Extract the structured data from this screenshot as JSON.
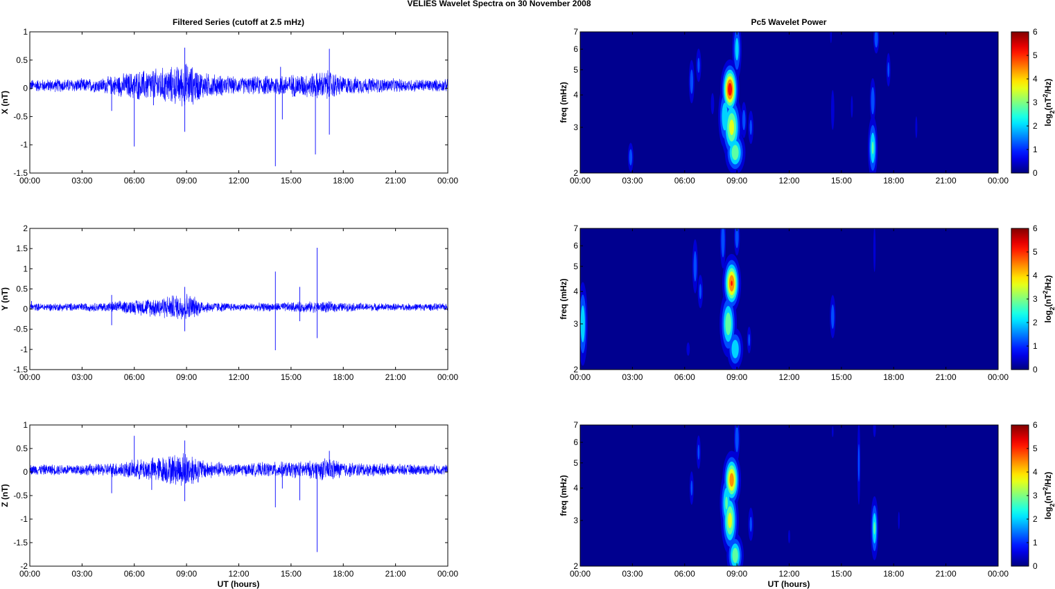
{
  "suptitle": "VELIES Wavelet Spectra on 30 November  2008",
  "left_title": "Filtered Series (cutoff at 2.5 mHz)",
  "right_title": "Pc5 Wavelet Power",
  "time_ticks": [
    "00:00",
    "03:00",
    "06:00",
    "09:00",
    "12:00",
    "15:00",
    "18:00",
    "21:00",
    "00:00"
  ],
  "xlabel": "UT (hours)",
  "freq_label": "freq (mHz)",
  "colorbar_label": {
    "base": "log",
    "sub": "2",
    "pre": "(nT",
    "sup": "2",
    "post": "/Hz)"
  },
  "colors": {
    "trace": "#0000ff",
    "background_power": "#00008f"
  },
  "chart_data": [
    {
      "type": "line",
      "panel": "series-x",
      "ylabel": "X (nT)",
      "xlim": [
        0,
        24
      ],
      "ylim": [
        -1.5,
        1
      ],
      "yticks": [
        "1",
        "0.5",
        "0",
        "-0.5",
        "-1",
        "-1.5"
      ],
      "ytick_values": [
        1,
        0.5,
        0,
        -0.5,
        -1,
        -1.5
      ],
      "envelope": [
        [
          0,
          0.12
        ],
        [
          4,
          0.14
        ],
        [
          6,
          0.28
        ],
        [
          8.5,
          0.38
        ],
        [
          9,
          0.45
        ],
        [
          10,
          0.25
        ],
        [
          12,
          0.16
        ],
        [
          14,
          0.2
        ],
        [
          16,
          0.24
        ],
        [
          17.2,
          0.3
        ],
        [
          18,
          0.18
        ],
        [
          21,
          0.13
        ],
        [
          24,
          0.12
        ]
      ],
      "spikes": [
        [
          4.7,
          -0.4
        ],
        [
          6.0,
          -1.03
        ],
        [
          7.1,
          -0.3
        ],
        [
          8.9,
          0.72
        ],
        [
          8.9,
          -0.77
        ],
        [
          14.1,
          -1.38
        ],
        [
          14.4,
          0.38
        ],
        [
          14.5,
          -0.55
        ],
        [
          16.4,
          -1.17
        ],
        [
          17.2,
          0.7
        ],
        [
          17.2,
          -0.82
        ]
      ]
    },
    {
      "type": "line",
      "panel": "series-y",
      "ylabel": "Y (nT)",
      "xlim": [
        0,
        24
      ],
      "ylim": [
        -1.5,
        2
      ],
      "yticks": [
        "2",
        "1.5",
        "1",
        "0.5",
        "0",
        "-0.5",
        "-1",
        "-1.5"
      ],
      "ytick_values": [
        2,
        1.5,
        1,
        0.5,
        0,
        -0.5,
        -1,
        -1.5
      ],
      "envelope": [
        [
          0,
          0.1
        ],
        [
          4,
          0.12
        ],
        [
          6,
          0.2
        ],
        [
          8.5,
          0.35
        ],
        [
          9,
          0.4
        ],
        [
          10,
          0.16
        ],
        [
          12,
          0.1
        ],
        [
          14,
          0.12
        ],
        [
          16,
          0.15
        ],
        [
          17,
          0.16
        ],
        [
          18,
          0.12
        ],
        [
          21,
          0.1
        ],
        [
          24,
          0.1
        ]
      ],
      "spikes": [
        [
          0.1,
          0.2
        ],
        [
          4.7,
          0.35
        ],
        [
          4.7,
          -0.4
        ],
        [
          8.9,
          0.55
        ],
        [
          8.9,
          -0.55
        ],
        [
          14.1,
          0.93
        ],
        [
          14.1,
          -1.02
        ],
        [
          15.5,
          0.55
        ],
        [
          15.5,
          -0.3
        ],
        [
          16.5,
          1.52
        ],
        [
          16.5,
          -0.72
        ]
      ]
    },
    {
      "type": "line",
      "panel": "series-z",
      "ylabel": "Z (nT)",
      "xlim": [
        0,
        24
      ],
      "ylim": [
        -2,
        1
      ],
      "yticks": [
        "1",
        "0.5",
        "0",
        "-0.5",
        "-1",
        "-1.5",
        "-2"
      ],
      "ytick_values": [
        1,
        0.5,
        0,
        -0.5,
        -1,
        -1.5,
        -2
      ],
      "envelope": [
        [
          0,
          0.12
        ],
        [
          4,
          0.14
        ],
        [
          6,
          0.22
        ],
        [
          8.5,
          0.38
        ],
        [
          9,
          0.45
        ],
        [
          10,
          0.22
        ],
        [
          12,
          0.14
        ],
        [
          14,
          0.18
        ],
        [
          16,
          0.2
        ],
        [
          17.2,
          0.28
        ],
        [
          18,
          0.18
        ],
        [
          21,
          0.13
        ],
        [
          24,
          0.12
        ]
      ],
      "spikes": [
        [
          4.7,
          -0.45
        ],
        [
          6.0,
          0.77
        ],
        [
          7.0,
          -0.38
        ],
        [
          8.9,
          0.67
        ],
        [
          8.9,
          -0.62
        ],
        [
          14.1,
          -0.75
        ],
        [
          14.5,
          -0.35
        ],
        [
          15.5,
          -0.6
        ],
        [
          16.5,
          -1.7
        ],
        [
          17.2,
          0.45
        ]
      ]
    },
    {
      "type": "heatmap",
      "panel": "power-x",
      "ylabel": "freq (mHz)",
      "xlim": [
        0,
        24
      ],
      "ylim": [
        2,
        7
      ],
      "yscale": "log",
      "yticks": [
        "2",
        "3",
        "4",
        "5",
        "6",
        "7"
      ],
      "ytick_values": [
        2,
        3,
        4,
        5,
        6,
        7
      ],
      "clim": [
        0,
        6
      ],
      "colorbar_ticks": [
        "0",
        "1",
        "2",
        "3",
        "4",
        "5",
        "6"
      ],
      "blobs": [
        [
          8.6,
          4.2,
          0.25,
          0.12,
          5.8
        ],
        [
          8.7,
          3.0,
          0.3,
          0.15,
          4.0
        ],
        [
          8.9,
          2.4,
          0.3,
          0.1,
          3.5
        ],
        [
          8.3,
          3.3,
          0.2,
          0.15,
          2.8
        ],
        [
          9.0,
          6.0,
          0.15,
          0.15,
          2.5
        ],
        [
          6.4,
          4.5,
          0.1,
          0.12,
          1.8
        ],
        [
          6.8,
          5.2,
          0.1,
          0.1,
          1.5
        ],
        [
          2.9,
          2.3,
          0.1,
          0.08,
          1.8
        ],
        [
          9.4,
          3.2,
          0.1,
          0.1,
          1.8
        ],
        [
          9.8,
          3.0,
          0.1,
          0.1,
          1.5
        ],
        [
          7.6,
          3.7,
          0.08,
          0.08,
          1.0
        ],
        [
          16.8,
          2.5,
          0.15,
          0.15,
          3.0
        ],
        [
          16.8,
          3.8,
          0.1,
          0.12,
          2.0
        ],
        [
          17.0,
          6.6,
          0.1,
          0.08,
          2.0
        ],
        [
          17.7,
          5.0,
          0.08,
          0.1,
          1.5
        ],
        [
          14.5,
          3.5,
          0.08,
          0.15,
          1.0
        ],
        [
          15.6,
          3.6,
          0.06,
          0.1,
          0.8
        ],
        [
          19.3,
          3.0,
          0.06,
          0.1,
          0.8
        ],
        [
          19.9,
          2.2,
          0.05,
          0.05,
          0.5
        ],
        [
          14.4,
          6.8,
          0.04,
          0.06,
          1.0
        ]
      ]
    },
    {
      "type": "heatmap",
      "panel": "power-y",
      "ylabel": "freq (mHz)",
      "xlim": [
        0,
        24
      ],
      "ylim": [
        2,
        7
      ],
      "yscale": "log",
      "yticks": [
        "2",
        "3",
        "4",
        "5",
        "6",
        "7"
      ],
      "ytick_values": [
        2,
        3,
        4,
        5,
        6,
        7
      ],
      "clim": [
        0,
        6
      ],
      "colorbar_ticks": [
        "0",
        "1",
        "2",
        "3",
        "4",
        "5",
        "6"
      ],
      "blobs": [
        [
          8.7,
          4.3,
          0.25,
          0.12,
          5.3
        ],
        [
          8.5,
          3.0,
          0.25,
          0.15,
          3.5
        ],
        [
          8.9,
          2.4,
          0.25,
          0.1,
          2.8
        ],
        [
          8.2,
          6.3,
          0.1,
          0.15,
          2.0
        ],
        [
          9.0,
          6.5,
          0.1,
          0.1,
          2.0
        ],
        [
          0.15,
          3.0,
          0.15,
          0.2,
          2.8
        ],
        [
          6.6,
          5.0,
          0.1,
          0.15,
          1.8
        ],
        [
          6.9,
          4.0,
          0.1,
          0.1,
          1.5
        ],
        [
          6.2,
          2.4,
          0.08,
          0.05,
          1.0
        ],
        [
          9.7,
          2.6,
          0.08,
          0.08,
          1.5
        ],
        [
          14.5,
          3.2,
          0.1,
          0.12,
          1.8
        ],
        [
          16.9,
          5.8,
          0.05,
          0.15,
          1.2
        ],
        [
          15.6,
          3.6,
          0.04,
          0.08,
          0.5
        ]
      ]
    },
    {
      "type": "heatmap",
      "panel": "power-z",
      "ylabel": "freq (mHz)",
      "xlim": [
        0,
        24
      ],
      "ylim": [
        2,
        7
      ],
      "yscale": "log",
      "yticks": [
        "2",
        "3",
        "4",
        "5",
        "6",
        "7"
      ],
      "ytick_values": [
        2,
        3,
        4,
        5,
        6,
        7
      ],
      "clim": [
        0,
        6
      ],
      "colorbar_ticks": [
        "0",
        "1",
        "2",
        "3",
        "4",
        "5",
        "6"
      ],
      "blobs": [
        [
          8.7,
          4.3,
          0.25,
          0.12,
          5.0
        ],
        [
          8.6,
          3.0,
          0.25,
          0.15,
          4.0
        ],
        [
          8.9,
          2.2,
          0.25,
          0.1,
          3.5
        ],
        [
          8.4,
          3.5,
          0.2,
          0.15,
          3.0
        ],
        [
          9.0,
          6.2,
          0.1,
          0.12,
          2.0
        ],
        [
          6.4,
          4.0,
          0.08,
          0.1,
          1.5
        ],
        [
          6.8,
          5.5,
          0.08,
          0.1,
          1.5
        ],
        [
          9.8,
          2.9,
          0.1,
          0.1,
          1.5
        ],
        [
          12.0,
          2.6,
          0.06,
          0.06,
          0.8
        ],
        [
          16.9,
          2.8,
          0.12,
          0.15,
          3.0
        ],
        [
          16.0,
          5.0,
          0.06,
          0.25,
          1.5
        ],
        [
          16.9,
          6.8,
          0.06,
          0.06,
          1.2
        ],
        [
          18.3,
          3.0,
          0.05,
          0.08,
          0.8
        ],
        [
          14.5,
          6.6,
          0.04,
          0.05,
          0.8
        ]
      ]
    }
  ]
}
